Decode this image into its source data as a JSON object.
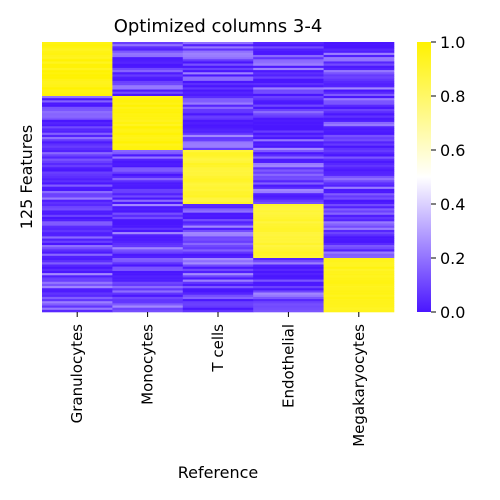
{
  "chart_data": {
    "type": "heatmap",
    "title": "Optimized columns 3-4",
    "xlabel": "Reference",
    "ylabel": "125 Features",
    "columns": [
      "Granulocytes",
      "Monocytes",
      "T cells",
      "Endothelial",
      "Megakaryocytes"
    ],
    "n_rows": 125,
    "blocks": [
      {
        "column": "Granulocytes",
        "rows": [
          0,
          24
        ],
        "value": 1.0
      },
      {
        "column": "Monocytes",
        "rows": [
          25,
          49
        ],
        "value": 1.0
      },
      {
        "column": "T cells",
        "rows": [
          50,
          74
        ],
        "value": 0.93
      },
      {
        "column": "Endothelial",
        "rows": [
          75,
          99
        ],
        "value": 0.93
      },
      {
        "column": "Megakaryocytes",
        "rows": [
          100,
          124
        ],
        "value": 0.97
      }
    ],
    "background_range": [
      0.0,
      0.25
    ],
    "colorbar": {
      "min": 0.0,
      "max": 1.0,
      "ticks": [
        "0.0",
        "0.2",
        "0.4",
        "0.6",
        "0.8",
        "1.0"
      ],
      "colors": [
        "#4a16ff",
        "#ffffff",
        "#fff200"
      ]
    },
    "grid": false
  }
}
